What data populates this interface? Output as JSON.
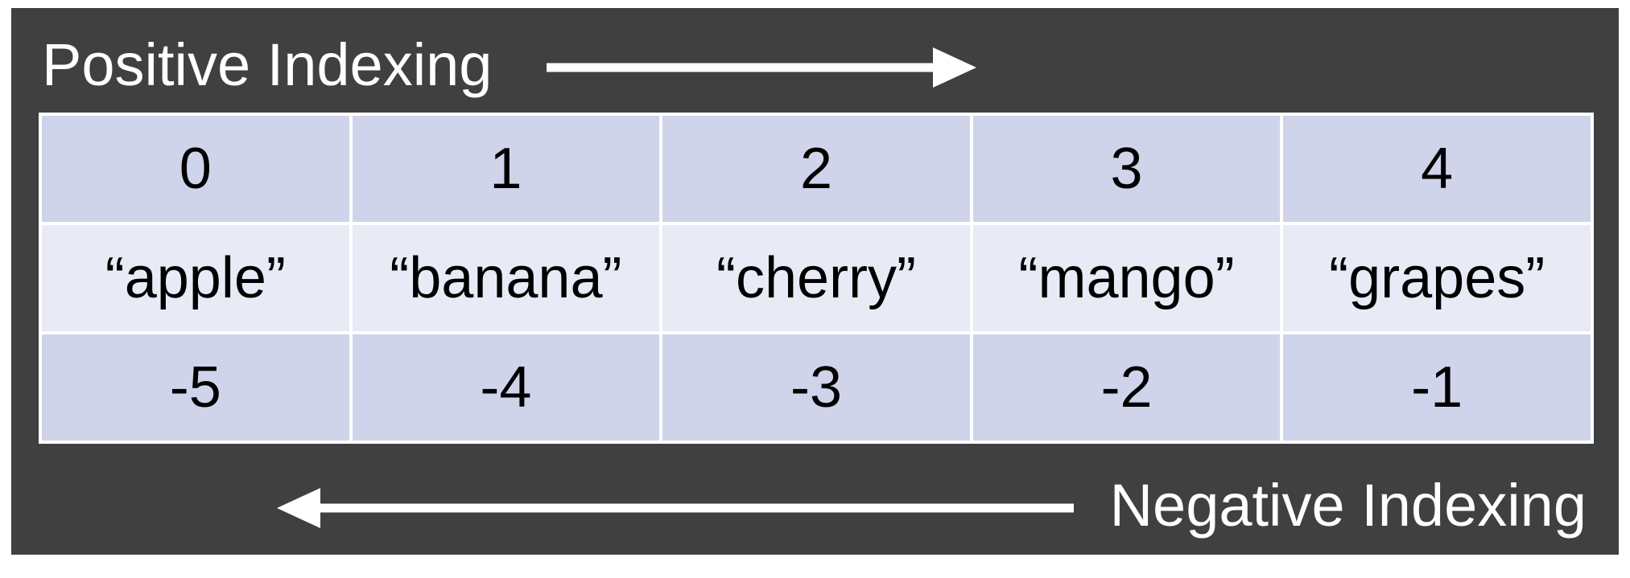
{
  "positive_label": "Positive Indexing",
  "negative_label": "Negative Indexing",
  "positive_indices": [
    "0",
    "1",
    "2",
    "3",
    "4"
  ],
  "values": [
    "“apple”",
    "“banana”",
    "“cherry”",
    "“mango”",
    "“grapes”"
  ],
  "negative_indices": [
    "-5",
    "-4",
    "-3",
    "-2",
    "-1"
  ],
  "colors": {
    "background": "#404040",
    "index_cell": "#cfd4eb",
    "value_cell": "#e8eaf5",
    "arrow": "#ffffff"
  }
}
